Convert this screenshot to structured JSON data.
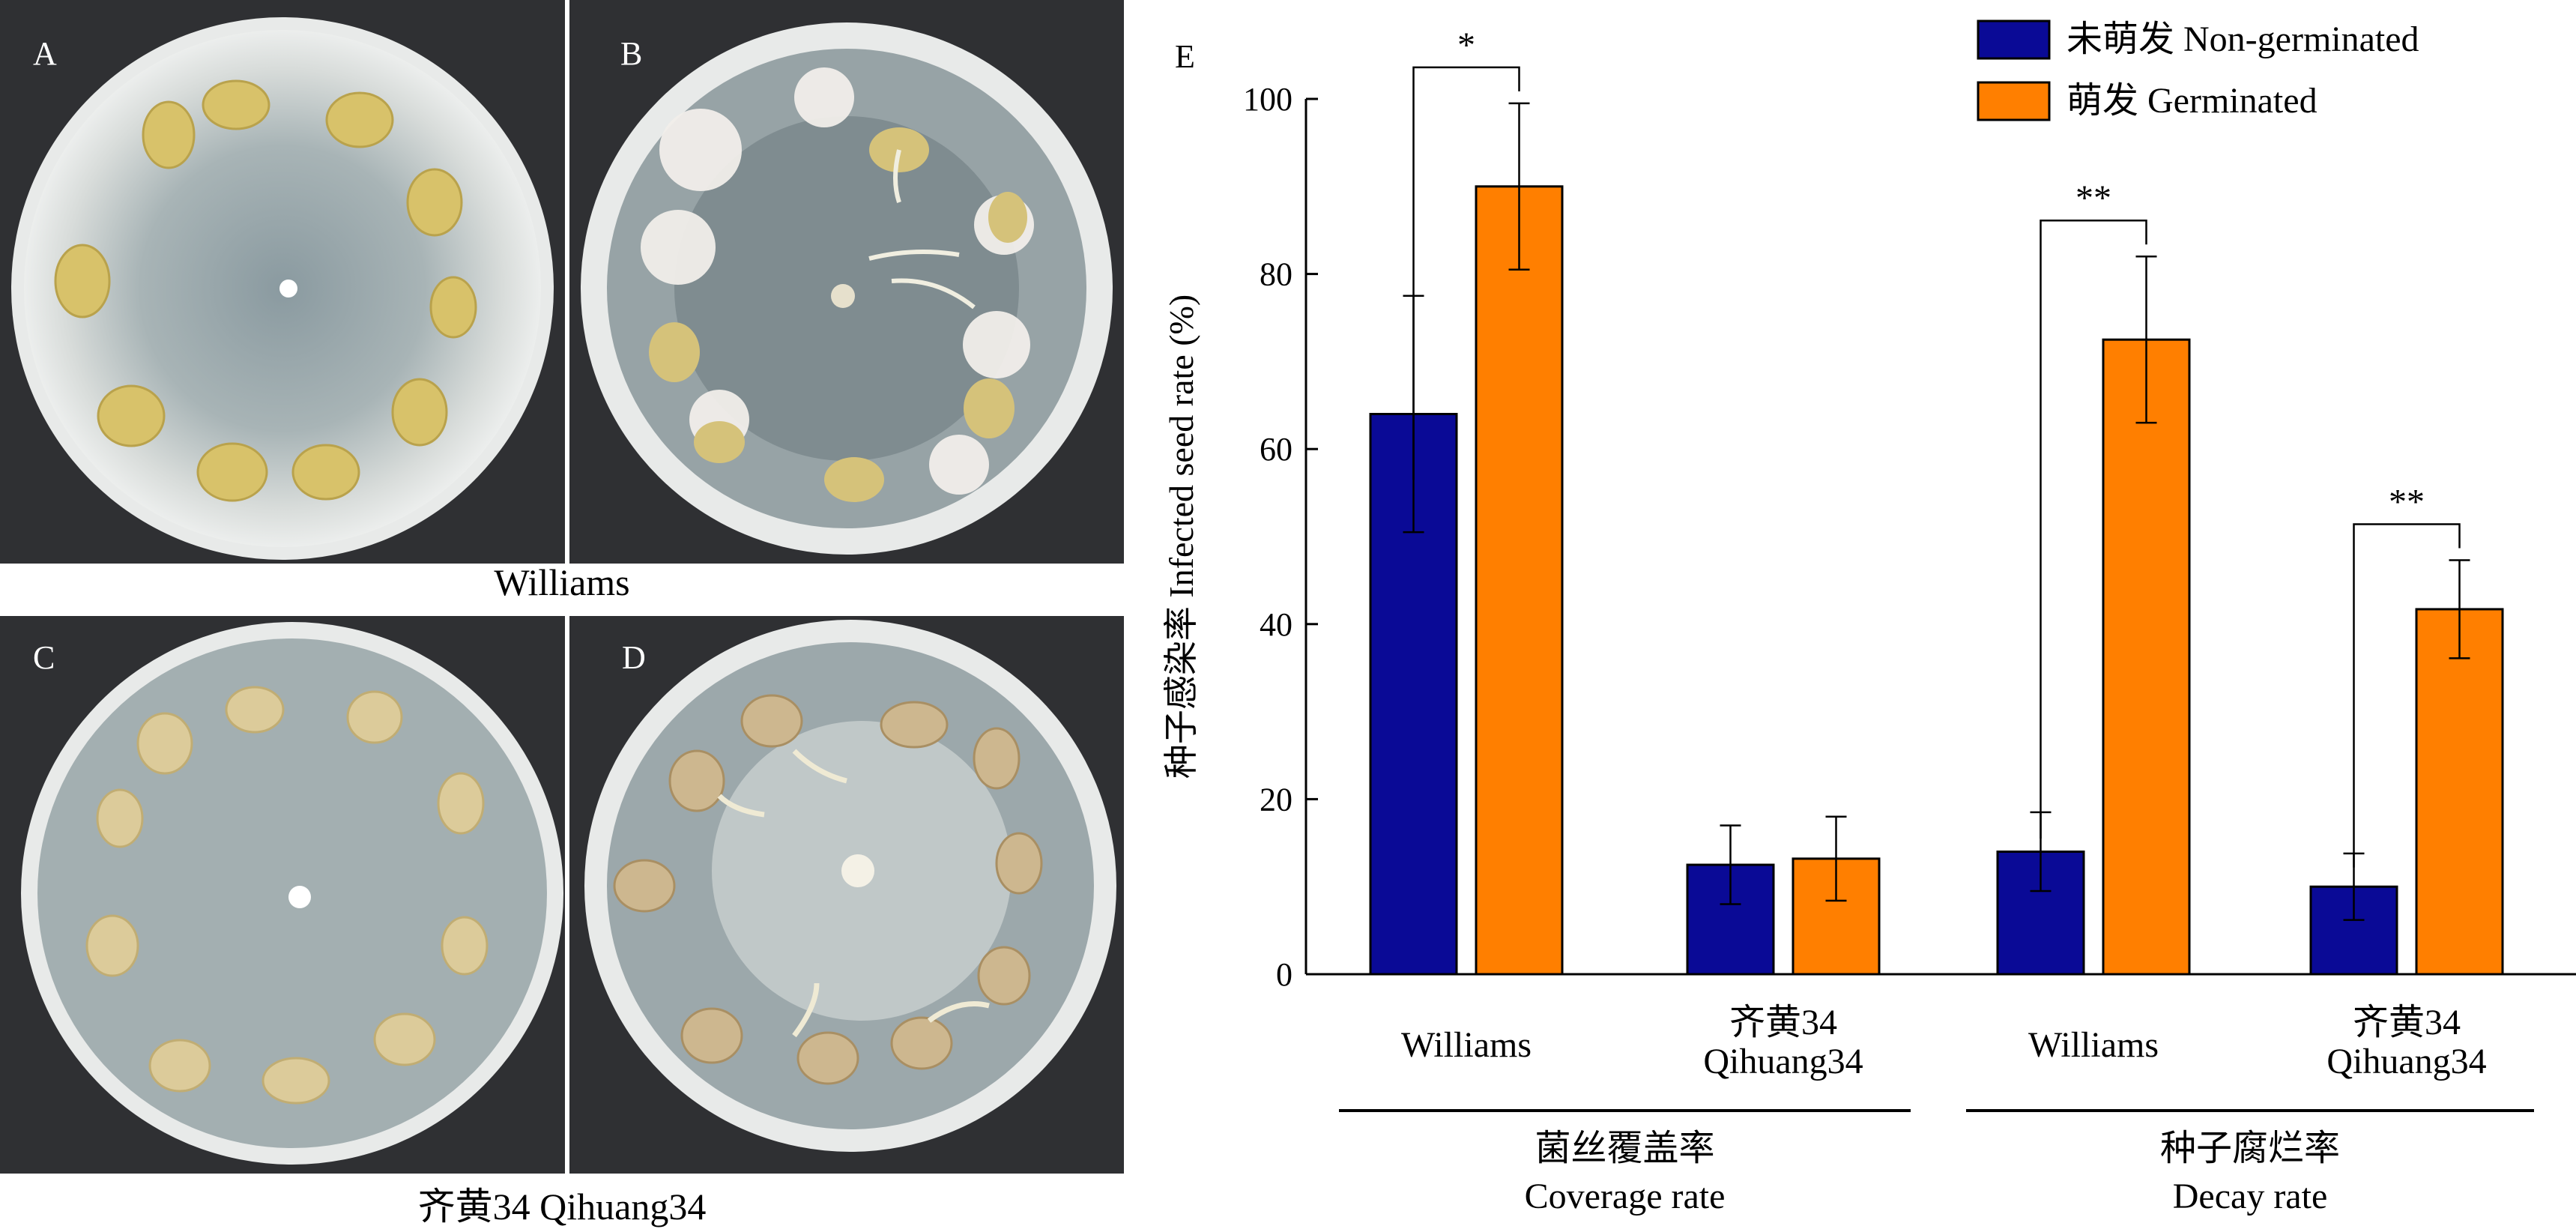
{
  "photos": {
    "panels": [
      {
        "label": "A"
      },
      {
        "label": "B"
      },
      {
        "label": "C"
      },
      {
        "label": "D"
      }
    ],
    "row1_caption": "Williams",
    "row2_caption": "齐黄34 Qihuang34"
  },
  "chart_data": {
    "type": "bar",
    "panel_label": "E",
    "ylabel": "种子感染率 Infected seed rate (%)",
    "ylim": [
      0,
      100
    ],
    "yticks": [
      0,
      20,
      40,
      60,
      80,
      100
    ],
    "groups": [
      {
        "name_lines": [
          "菌丝覆盖率",
          "Coverage rate"
        ],
        "categories": [
          0,
          1
        ]
      },
      {
        "name_lines": [
          "种子腐烂率",
          "Decay rate"
        ],
        "categories": [
          2,
          3
        ]
      }
    ],
    "categories": [
      {
        "lines": [
          "Williams"
        ]
      },
      {
        "lines": [
          "齐黄34",
          "Qihuang34"
        ]
      },
      {
        "lines": [
          "Williams"
        ]
      },
      {
        "lines": [
          "齐黄34",
          "Qihuang34"
        ]
      }
    ],
    "series": [
      {
        "name": "未萌发 Non-germinated",
        "color": "#0a0a96",
        "values": [
          64,
          12.5,
          14,
          10
        ],
        "errors": [
          13.5,
          4.5,
          4.5,
          3.8
        ]
      },
      {
        "name": "萌发 Germinated",
        "color": "#ff7f00",
        "values": [
          90,
          13.2,
          72.5,
          41.7
        ],
        "errors": [
          9.5,
          4.8,
          9.5,
          5.6
        ]
      }
    ],
    "significance": [
      {
        "category": 0,
        "label": "*"
      },
      {
        "category": 2,
        "label": "**"
      },
      {
        "category": 3,
        "label": "**"
      }
    ],
    "legend_position": "top-right",
    "grid": false
  }
}
